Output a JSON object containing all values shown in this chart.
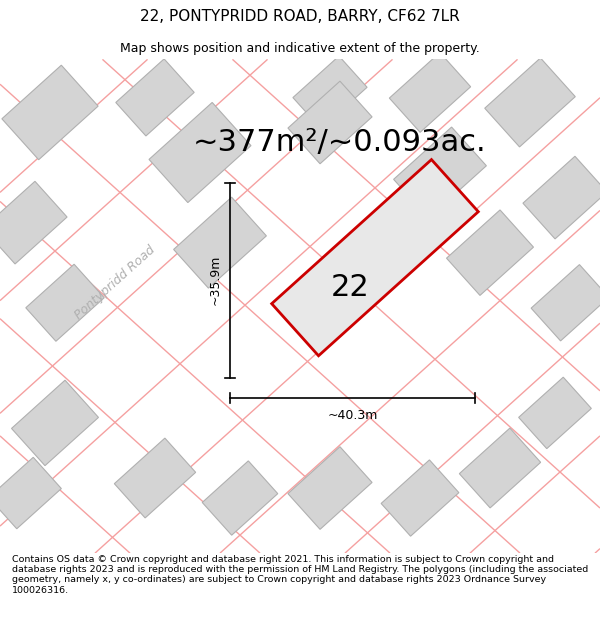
{
  "title": "22, PONTYPRIDD ROAD, BARRY, CF62 7LR",
  "subtitle": "Map shows position and indicative extent of the property.",
  "area_text": "~377m²/~0.093ac.",
  "label_number": "22",
  "dim_width": "~40.3m",
  "dim_height": "~35.9m",
  "road_label": "Pontypridd Road",
  "footer": "Contains OS data © Crown copyright and database right 2021. This information is subject to Crown copyright and database rights 2023 and is reproduced with the permission of HM Land Registry. The polygons (including the associated geometry, namely x, y co-ordinates) are subject to Crown copyright and database rights 2023 Ordnance Survey 100026316.",
  "map_bg": "#f2f2f2",
  "plot_fill": "#e8e8e8",
  "plot_edge": "#cc0000",
  "building_fill": "#d4d4d4",
  "building_edge": "#b0b0b0",
  "road_line_color": "#f5a0a0",
  "title_fontsize": 11,
  "subtitle_fontsize": 9,
  "area_fontsize": 22,
  "label_fontsize": 22,
  "dim_fontsize": 9,
  "road_label_fontsize": 9,
  "footer_fontsize": 6.8
}
